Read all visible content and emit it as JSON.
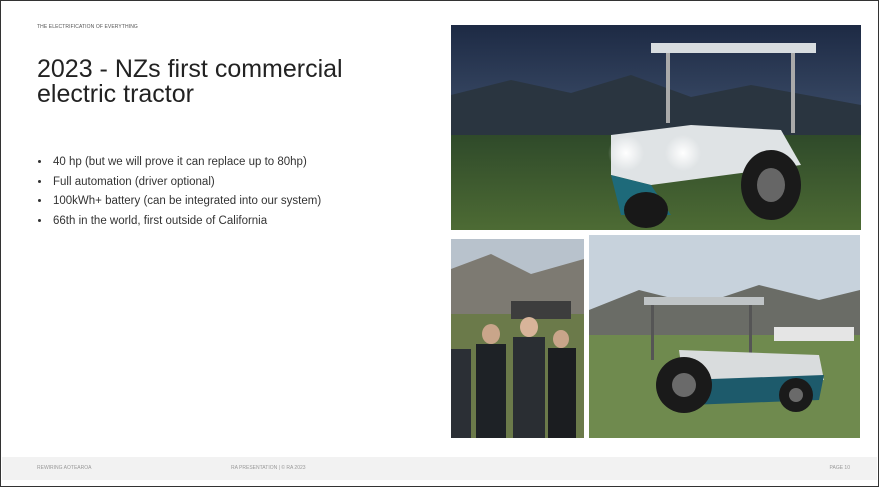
{
  "header": {
    "kicker": "THE ELECTRIFICATION OF EVERYTHING",
    "title": "2023 - NZs first commercial electric tractor"
  },
  "bullets": [
    "40 hp (but we will prove it can replace up to 80hp)",
    "Full automation (driver optional)",
    "100kWh+ battery (can be integrated into our system)",
    "66th in the world, first outside of California"
  ],
  "footer": {
    "left": "REWIRING AOTEAROA",
    "center": "RA PRESENTATION  |  © RA 2023",
    "right": "PAGE 10"
  }
}
